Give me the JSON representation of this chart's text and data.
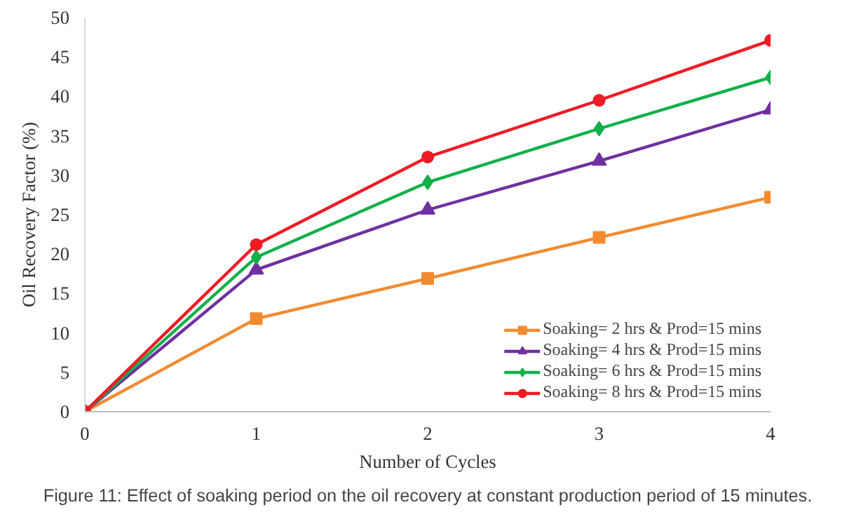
{
  "chart_data": {
    "type": "line",
    "xlabel": "Number of Cycles",
    "ylabel": "Oil Recovery Factor (%)",
    "x": [
      0,
      1,
      2,
      3,
      4
    ],
    "series": [
      {
        "name": "Soaking= 2 hrs & Prod=15 mins",
        "color": "#f28b30",
        "marker": "square",
        "values": [
          0,
          11.8,
          16.9,
          22.1,
          27.2
        ]
      },
      {
        "name": "Soaking= 4 hrs & Prod=15 mins",
        "color": "#7030a0",
        "marker": "triangle",
        "values": [
          0,
          18.0,
          25.6,
          31.8,
          38.3
        ]
      },
      {
        "name": "Soaking= 6 hrs & Prod=15 mins",
        "color": "#12b04a",
        "marker": "diamond",
        "values": [
          0,
          19.6,
          29.1,
          35.9,
          42.4
        ]
      },
      {
        "name": "Soaking= 8 hrs & Prod=15 mins",
        "color": "#ee1c25",
        "marker": "circle",
        "values": [
          0,
          21.2,
          32.3,
          39.5,
          47.1
        ]
      }
    ],
    "xlim": [
      0,
      4
    ],
    "xticks": [
      0,
      1,
      2,
      3,
      4
    ],
    "ylim": [
      0,
      50
    ],
    "yticks": [
      0,
      5,
      10,
      15,
      20,
      25,
      30,
      35,
      40,
      45,
      50
    ],
    "grid": false,
    "legend": "bottom right",
    "line_style": "solid",
    "annotations": [
      "Figure 11: Effect of soaking period on the oil recovery at constant production period of 15 minutes."
    ]
  }
}
